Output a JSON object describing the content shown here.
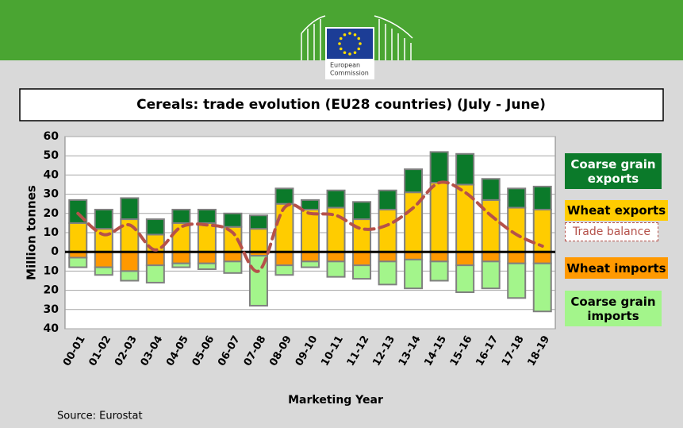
{
  "header": {
    "logo_lines": [
      "European",
      "Commission"
    ]
  },
  "chart_data": {
    "type": "bar",
    "stacked": true,
    "title": "Cereals: trade evolution (EU28 countries)  (July - June)",
    "y_label": "Million tonnes",
    "x_label": "Marketing Year",
    "source": "Source: Eurostat",
    "categories": [
      "00-01",
      "01-02",
      "02-03",
      "03-04",
      "04-05",
      "05-06",
      "06-07",
      "07-08",
      "08-09",
      "09-10",
      "10-11",
      "11-12",
      "12-13",
      "13-14",
      "14-15",
      "15-16",
      "16-17",
      "17-18",
      "18-19"
    ],
    "ylim": [
      -40,
      60
    ],
    "yticks": [
      60,
      50,
      40,
      30,
      20,
      10,
      0,
      {
        "value": -10,
        "label": "10"
      },
      {
        "value": -20,
        "label": "20"
      },
      {
        "value": -30,
        "label": "30"
      },
      {
        "value": -40,
        "label": "40"
      }
    ],
    "grid": true,
    "series": [
      {
        "name": "Wheat exports",
        "color": "#ffcc00",
        "values": [
          15,
          12,
          17,
          9,
          15,
          15,
          13,
          12,
          25,
          22,
          23,
          17,
          22,
          31,
          36,
          35,
          27,
          23,
          22
        ]
      },
      {
        "name": "Coarse grain exports",
        "color": "#0b7a2a",
        "values": [
          12,
          10,
          11,
          8,
          7,
          7,
          7,
          7,
          8,
          5,
          9,
          9,
          10,
          12,
          16,
          16,
          11,
          10,
          12
        ]
      },
      {
        "name": "Wheat imports",
        "color": "#ff9900",
        "values": [
          -3,
          -8,
          -10,
          -7,
          -6,
          -6,
          -5,
          -2,
          -7,
          -5,
          -5,
          -7,
          -5,
          -4,
          -5,
          -7,
          -5,
          -6,
          -6
        ]
      },
      {
        "name": "Coarse grain imports",
        "color": "#a3f58b",
        "values": [
          -5,
          -4,
          -5,
          -9,
          -2,
          -3,
          -6,
          -26,
          -5,
          -3,
          -8,
          -7,
          -12,
          -15,
          -10,
          -14,
          -14,
          -18,
          -25
        ]
      },
      {
        "name": "Trade balance",
        "type": "line",
        "color": "#b5514a",
        "dashed": true,
        "values": [
          20,
          9,
          14,
          1,
          13,
          14,
          10,
          -10,
          23,
          20,
          19,
          12,
          14,
          23,
          36,
          31,
          19,
          9,
          3
        ]
      }
    ]
  }
}
